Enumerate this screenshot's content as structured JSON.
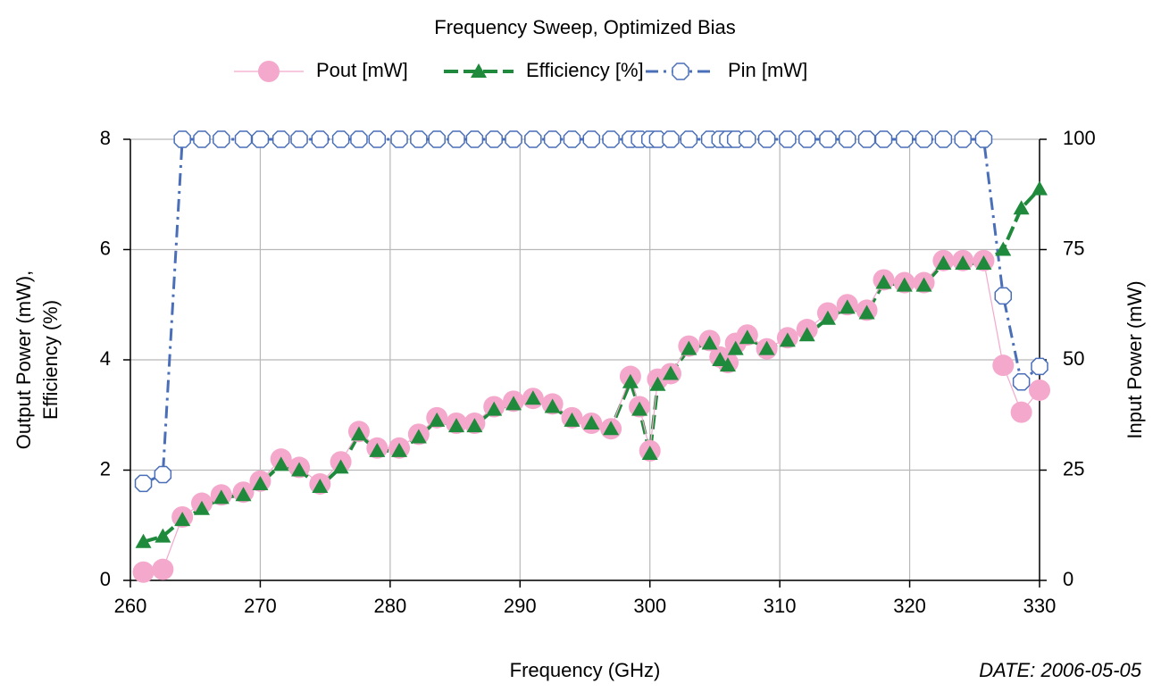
{
  "chart_data": {
    "type": "line",
    "title": "Frequency Sweep, Optimized Bias",
    "xlabel": "Frequency (GHz)",
    "ylabel": [
      "Output Power (mW),",
      "Efficiency  (%)"
    ],
    "y2label": "Input Power (mW)",
    "annotation": "DATE: 2006-05-05",
    "xlim": [
      260,
      330
    ],
    "xticks": [
      260,
      270,
      280,
      290,
      300,
      310,
      320,
      330
    ],
    "ylim": [
      0,
      8
    ],
    "yticks": [
      0,
      2,
      4,
      6,
      8
    ],
    "y2lim": [
      0,
      100
    ],
    "y2ticks": [
      0,
      25,
      50,
      75,
      100
    ],
    "grid": true,
    "legend": "top",
    "x": [
      261,
      262.5,
      264,
      265.5,
      267,
      268.7,
      270,
      271.6,
      273,
      274.6,
      276.2,
      277.6,
      279,
      280.7,
      282.2,
      283.6,
      285.1,
      286.5,
      288,
      289.5,
      291,
      292.5,
      294,
      295.5,
      297,
      298.5,
      299.2,
      300,
      300.6,
      301.6,
      303,
      304.6,
      305.4,
      306,
      306.6,
      307.5,
      309,
      310.6,
      312.1,
      313.7,
      315.2,
      316.7,
      318,
      319.6,
      321.1,
      322.6,
      324.1,
      325.7,
      327.2,
      328.6,
      330
    ],
    "series": [
      {
        "name": "Pout [mW]",
        "color": "#f4a8cc",
        "marker": "circle",
        "values": [
          0.15,
          0.2,
          1.15,
          1.4,
          1.55,
          1.6,
          1.8,
          2.2,
          2.05,
          1.75,
          2.15,
          2.7,
          2.4,
          2.4,
          2.65,
          2.95,
          2.85,
          2.85,
          3.15,
          3.25,
          3.3,
          3.2,
          2.95,
          2.85,
          2.75,
          3.7,
          3.15,
          2.35,
          3.65,
          3.75,
          4.25,
          4.35,
          4.05,
          3.95,
          4.3,
          4.45,
          4.2,
          4.4,
          4.55,
          4.85,
          5.0,
          4.9,
          5.45,
          5.4,
          5.4,
          5.8,
          5.8,
          5.8,
          3.9,
          3.05,
          3.45
        ]
      },
      {
        "name": "Efficiency [%]",
        "color": "#1f8a3c",
        "marker": "triangle",
        "values": [
          0.7,
          0.8,
          1.1,
          1.3,
          1.5,
          1.55,
          1.75,
          2.1,
          2.0,
          1.7,
          2.05,
          2.65,
          2.35,
          2.35,
          2.6,
          2.9,
          2.8,
          2.8,
          3.1,
          3.2,
          3.3,
          3.15,
          2.9,
          2.85,
          2.75,
          3.6,
          3.1,
          2.3,
          3.55,
          3.75,
          4.2,
          4.3,
          4.0,
          3.9,
          4.2,
          4.4,
          4.2,
          4.35,
          4.45,
          4.75,
          4.95,
          4.85,
          5.4,
          5.35,
          5.35,
          5.75,
          5.75,
          5.75,
          6.0,
          6.75,
          7.1
        ]
      },
      {
        "name": "Pin [mW]",
        "color": "#4a6fb8",
        "marker": "square",
        "axis": "y2",
        "values": [
          22,
          24,
          100,
          100,
          100,
          100,
          100,
          100,
          100,
          100,
          100,
          100,
          100,
          100,
          100,
          100,
          100,
          100,
          100,
          100,
          100,
          100,
          100,
          100,
          100,
          100,
          100,
          100,
          100,
          100,
          100,
          100,
          100,
          100,
          100,
          100,
          100,
          100,
          100,
          100,
          100,
          100,
          100,
          100,
          100,
          100,
          100,
          100,
          64.5,
          45,
          48.5
        ]
      }
    ]
  }
}
